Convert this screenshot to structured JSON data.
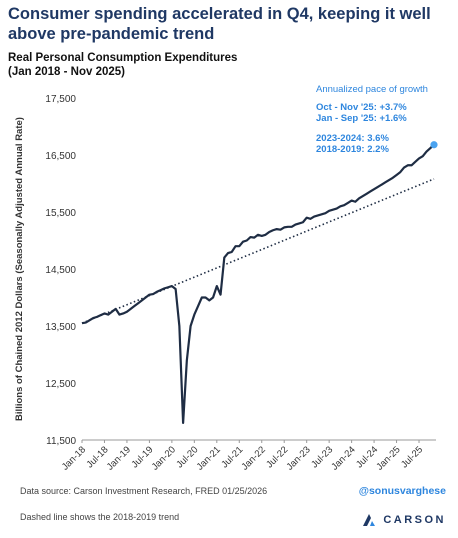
{
  "header": {
    "headline": "Consumer spending accelerated in Q4, keeping it well above pre-pandemic trend"
  },
  "chart_data": {
    "type": "line",
    "title": "Real Personal Consumption Expenditures",
    "subtitle": "(Jan 2018 - Nov 2025)",
    "xlabel": "",
    "ylabel": "Billions of Chained 2012 Dollars (Seasonally Adjusted Annual Rate)",
    "ylim": [
      11500,
      17500
    ],
    "yticks": [
      "11,500",
      "12,500",
      "13,500",
      "14,500",
      "15,500",
      "16,500",
      "17,500"
    ],
    "ytick_values": [
      11500,
      12500,
      13500,
      14500,
      15500,
      16500,
      17500
    ],
    "xticks": [
      "Jan-18",
      "Jul-18",
      "Jan-19",
      "Jul-19",
      "Jan-20",
      "Jul-20",
      "Jan-21",
      "Jul-21",
      "Jan-22",
      "Jul-22",
      "Jan-23",
      "Jul-23",
      "Jan-24",
      "Jul-24",
      "Jan-25",
      "Jul-25"
    ],
    "grid": false,
    "series": [
      {
        "name": "",
        "color": "#1f2d44",
        "style": "solid",
        "x": [
          "2018-01",
          "2018-02",
          "2018-03",
          "2018-04",
          "2018-05",
          "2018-06",
          "2018-07",
          "2018-08",
          "2018-09",
          "2018-10",
          "2018-11",
          "2018-12",
          "2019-01",
          "2019-02",
          "2019-03",
          "2019-04",
          "2019-05",
          "2019-06",
          "2019-07",
          "2019-08",
          "2019-09",
          "2019-10",
          "2019-11",
          "2019-12",
          "2020-01",
          "2020-02",
          "2020-03",
          "2020-04",
          "2020-05",
          "2020-06",
          "2020-07",
          "2020-08",
          "2020-09",
          "2020-10",
          "2020-11",
          "2020-12",
          "2021-01",
          "2021-02",
          "2021-03",
          "2021-04",
          "2021-05",
          "2021-06",
          "2021-07",
          "2021-08",
          "2021-09",
          "2021-10",
          "2021-11",
          "2021-12",
          "2022-01",
          "2022-02",
          "2022-03",
          "2022-04",
          "2022-05",
          "2022-06",
          "2022-07",
          "2022-08",
          "2022-09",
          "2022-10",
          "2022-11",
          "2022-12",
          "2023-01",
          "2023-02",
          "2023-03",
          "2023-04",
          "2023-05",
          "2023-06",
          "2023-07",
          "2023-08",
          "2023-09",
          "2023-10",
          "2023-11",
          "2023-12",
          "2024-01",
          "2024-02",
          "2024-03",
          "2024-04",
          "2024-05",
          "2024-06",
          "2024-07",
          "2024-08",
          "2024-09",
          "2024-10",
          "2024-11",
          "2024-12",
          "2025-01",
          "2025-02",
          "2025-03",
          "2025-04",
          "2025-05",
          "2025-06",
          "2025-07",
          "2025-08",
          "2025-09",
          "2025-10",
          "2025-11"
        ],
        "values": [
          13550,
          13560,
          13600,
          13640,
          13660,
          13690,
          13720,
          13700,
          13750,
          13800,
          13700,
          13720,
          13750,
          13800,
          13850,
          13900,
          13950,
          14000,
          14050,
          14060,
          14100,
          14130,
          14160,
          14180,
          14200,
          14150,
          13500,
          11800,
          12900,
          13500,
          13700,
          13850,
          14000,
          14000,
          13950,
          14000,
          14200,
          14050,
          14700,
          14780,
          14800,
          14900,
          14900,
          14980,
          15000,
          15060,
          15050,
          15100,
          15080,
          15100,
          15150,
          15180,
          15200,
          15190,
          15230,
          15240,
          15240,
          15280,
          15300,
          15320,
          15400,
          15380,
          15420,
          15440,
          15460,
          15480,
          15520,
          15540,
          15560,
          15600,
          15620,
          15660,
          15700,
          15680,
          15740,
          15780,
          15820,
          15860,
          15900,
          15940,
          15980,
          16020,
          16060,
          16100,
          16150,
          16200,
          16280,
          16320,
          16320,
          16380,
          16440,
          16480,
          16560,
          16620,
          16680
        ]
      },
      {
        "name": "",
        "color": "#1f2d44",
        "style": "dotted",
        "x": [
          "2018-01",
          "2025-11"
        ],
        "values": [
          13550,
          16080
        ]
      }
    ],
    "annotations": {
      "growth_title": "Annualized pace of growth",
      "growth_lines_1": [
        "Oct - Nov '25: +3.7%",
        "Jan - Sep '25: +1.6%"
      ],
      "growth_lines_2": [
        "2023-2024: 3.6%",
        "2018-2019: 2.2%"
      ],
      "accent_color": "#2e86de",
      "endpoint_marker_color": "#4aa3f0"
    }
  },
  "footer": {
    "source": "Data source: Carson Investment Research, FRED   01/25/2026",
    "note": "Dashed line shows the 2018-2019 trend",
    "handle": "@sonusvarghese",
    "brand": "CARSON",
    "brand_color": "#1f3864",
    "brand_accent": "#2e86de"
  }
}
